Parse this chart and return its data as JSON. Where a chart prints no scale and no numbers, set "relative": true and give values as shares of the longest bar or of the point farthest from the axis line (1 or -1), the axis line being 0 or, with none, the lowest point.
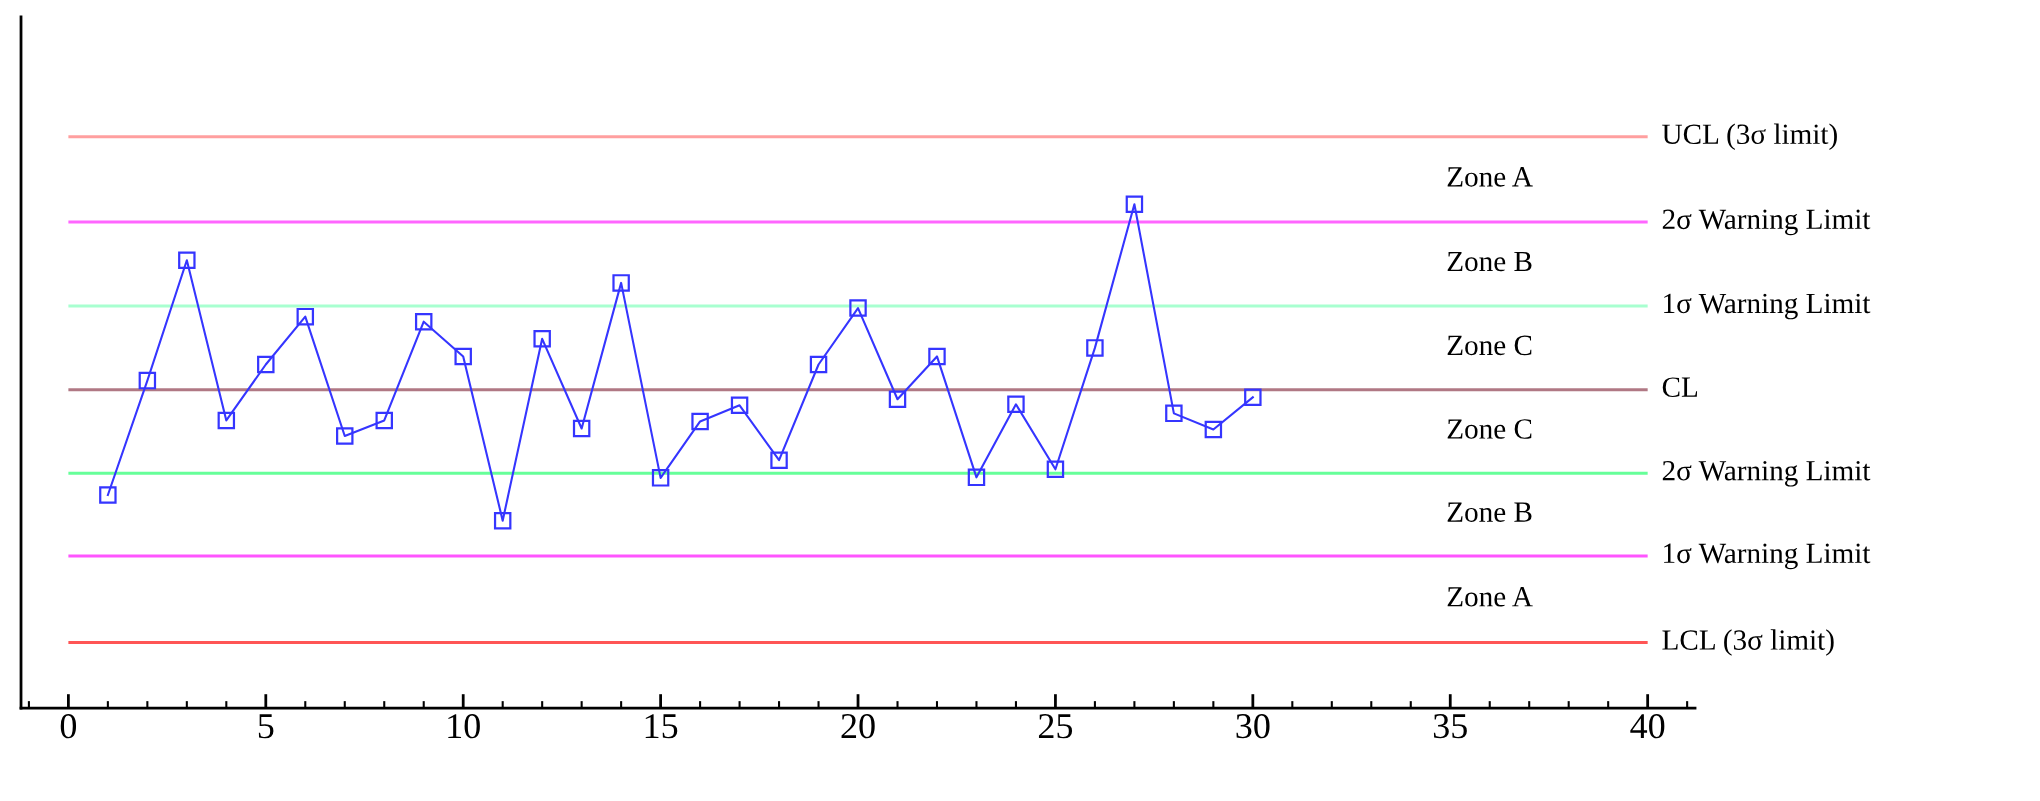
{
  "chart_data": {
    "type": "line",
    "relative": true,
    "x": [
      1,
      2,
      3,
      4,
      5,
      6,
      7,
      8,
      9,
      10,
      11,
      12,
      13,
      14,
      15,
      16,
      17,
      18,
      19,
      20,
      21,
      22,
      23,
      24,
      25,
      26,
      27,
      28,
      29,
      30
    ],
    "series": [
      {
        "color": "#3535ff",
        "values": [
          0.423,
          0.65,
          0.889,
          0.571,
          0.682,
          0.777,
          0.54,
          0.571,
          0.767,
          0.698,
          0.372,
          0.733,
          0.555,
          0.844,
          0.457,
          0.569,
          0.601,
          0.492,
          0.682,
          0.794,
          0.613,
          0.698,
          0.458,
          0.603,
          0.474,
          0.715,
          1,
          0.585,
          0.553,
          0.617
        ]
      }
    ],
    "marker": "square",
    "line_style": "solid",
    "grid": false,
    "legend": false,
    "tick_labels": "x",
    "xlim": [
      -1.2,
      41.2
    ],
    "xticks": [
      0,
      5,
      10,
      15,
      20,
      25,
      30,
      35,
      40
    ],
    "ref_lines": [
      {
        "axis": "y",
        "value": 1.134,
        "label": "UCL (3σ limit)",
        "color": "#ff9f9f"
      },
      {
        "axis": "y",
        "value": 0.965,
        "label": "2σ Warning Limit",
        "color": "#ff66ff"
      },
      {
        "axis": "y",
        "value": 0.798,
        "label": "1σ Warning Limit",
        "color": "#a8ffd0"
      },
      {
        "axis": "y",
        "value": 0.632,
        "label": "CL",
        "color": "#b07884"
      },
      {
        "axis": "y",
        "value": 0.466,
        "label": "2σ Warning Limit",
        "color": "#66ff99"
      },
      {
        "axis": "y",
        "value": 0.302,
        "label": "1σ Warning Limit",
        "color": "#ff55ff"
      },
      {
        "axis": "y",
        "value": 0.13,
        "label": "LCL (3σ limit)",
        "color": "#ff5555"
      }
    ],
    "annotations": [
      "Zone A",
      "Zone B",
      "Zone C",
      "Zone C",
      "Zone B",
      "Zone A"
    ]
  }
}
